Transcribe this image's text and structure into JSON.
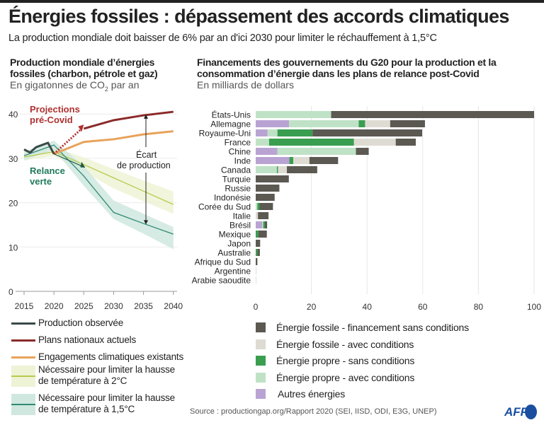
{
  "header": {
    "title": "Énergies fossiles : dépassement des accords climatiques",
    "subtitle": "La production mondiale doit baisser de 6% par an d'ici 2030 pour limiter le réchauffement à 1,5°C"
  },
  "colors": {
    "observed": "#3a4a48",
    "plans": "#8b2a2a",
    "engagements": "#e8a25a",
    "two_deg_line": "#b8c94a",
    "two_deg_band": "#eef3d6",
    "one5_line": "#2f8a72",
    "one5_band": "#cfe7df",
    "fossil_uncond": "#5c5952",
    "fossil_cond": "#dedbd2",
    "clean_uncond": "#3a9e50",
    "clean_cond": "#bfe2c6",
    "other": "#b9a3d3"
  },
  "chart_data": [
    {
      "type": "line",
      "title": "Production mondiale d’énergies fossiles (charbon, pétrole et gaz)",
      "subtitle": "En gigatonnes de CO",
      "subtitle_sub": "2",
      "subtitle_end": " par an",
      "xlim": [
        2015,
        2040
      ],
      "ylim": [
        0,
        40
      ],
      "xticks": [
        2015,
        2020,
        2025,
        2030,
        2035,
        2040
      ],
      "yticks": [
        0,
        10,
        20,
        30,
        40
      ],
      "grid": true,
      "series": [
        {
          "name": "Production observée",
          "x": [
            2015,
            2016,
            2017,
            2018,
            2019,
            2020
          ],
          "y": [
            32,
            31.3,
            32.5,
            33,
            33.5,
            31
          ]
        },
        {
          "name": "Plans nationaux actuels",
          "x": [
            2025,
            2030,
            2035,
            2040
          ],
          "y": [
            36.7,
            38.6,
            39.7,
            40.5
          ]
        },
        {
          "name": "Engagements climatiques existants",
          "x": [
            2020,
            2025,
            2030,
            2035,
            2040
          ],
          "y": [
            31,
            33.7,
            34.3,
            35.4,
            36.1
          ]
        },
        {
          "name": "Nécessaire pour limiter la hausse de température à 2°C",
          "x": [
            2015,
            2020,
            2025,
            2030,
            2035,
            2040
          ],
          "y": [
            30.3,
            31.5,
            28.6,
            25.6,
            22.6,
            19.6
          ],
          "upper": [
            31,
            32.5,
            30.2,
            27.6,
            25,
            22.5
          ],
          "lower": [
            29.5,
            30.5,
            27,
            23.2,
            20.3,
            17.5
          ]
        },
        {
          "name": "Nécessaire pour limiter la hausse de température à 1,5°C",
          "x": [
            2015,
            2020,
            2025,
            2030,
            2035,
            2040
          ],
          "y": [
            30.6,
            33,
            26,
            17.8,
            15.3,
            12.9
          ],
          "upper": [
            31.5,
            34,
            28.3,
            20.5,
            17.5,
            14.5
          ],
          "lower": [
            29.5,
            32,
            23.8,
            16.3,
            13,
            9.5
          ]
        }
      ],
      "annotations": {
        "projections": [
          "Projections",
          "pré-Covid"
        ],
        "relance": [
          "Relance",
          "verte"
        ],
        "ecart": [
          "Écart",
          "de production"
        ]
      }
    },
    {
      "type": "bar",
      "stacked": true,
      "orientation": "horizontal",
      "title": "Financements des gouvernements du G20 pour la production et la consommation d’énergie dans les plans de relance post-Covid",
      "subtitle": "En milliards de dollars",
      "xlim": [
        0,
        100
      ],
      "xticks": [
        0,
        20,
        40,
        60,
        80,
        100
      ],
      "grid": true,
      "categories": [
        "États-Unis",
        "Allemagne",
        "Royaume-Uni",
        "France",
        "Chine",
        "Inde",
        "Canada",
        "Turquie",
        "Russie",
        "Indonésie",
        "Corée du Sud",
        "Italie",
        "Brésil",
        "Mexique",
        "Japon",
        "Australie",
        "Afrique du Sud",
        "Argentine",
        "Arabie saoudite"
      ],
      "series": [
        {
          "name": "Autres énergies",
          "key": "other",
          "values": [
            0,
            12,
            4.2,
            0,
            7.8,
            12.1,
            0,
            0,
            0,
            0,
            0,
            0,
            2.3,
            0,
            0,
            0,
            0,
            0,
            0
          ]
        },
        {
          "name": "Énergie propre - avec conditions",
          "key": "clean_cond",
          "values": [
            27.1,
            25,
            3.6,
            4.8,
            28.2,
            0,
            7.6,
            0,
            0,
            0,
            0.6,
            0,
            0.4,
            0,
            0,
            0,
            0,
            0.2,
            0.2
          ]
        },
        {
          "name": "Énergie propre - sans conditions",
          "key": "clean_uncond",
          "values": [
            0,
            2.3,
            12.6,
            30.5,
            0,
            1.4,
            0.4,
            0,
            0,
            0,
            0.8,
            0,
            0.6,
            1,
            0,
            0.6,
            0,
            0,
            0
          ]
        },
        {
          "name": "Énergie fossile - avec conditions",
          "key": "fossil_cond",
          "values": [
            0,
            9,
            0,
            15,
            0,
            5.8,
            3.2,
            0,
            0,
            0,
            0,
            0.8,
            0,
            0,
            0,
            0,
            0,
            0,
            0
          ]
        },
        {
          "name": "Énergie fossile - financement sans conditions",
          "key": "fossil_uncond",
          "values": [
            72.9,
            12.5,
            39.4,
            7.2,
            4.6,
            10.3,
            10.9,
            11.9,
            8.5,
            6.8,
            4.8,
            3.8,
            0.8,
            3,
            1.6,
            0.9,
            0.6,
            0,
            0
          ]
        }
      ],
      "legend_order": [
        "fossil_uncond",
        "fossil_cond",
        "clean_uncond",
        "clean_cond",
        "other"
      ]
    }
  ],
  "legend_left": [
    {
      "label": "Production observée",
      "key": "observed"
    },
    {
      "label": "Plans nationaux actuels",
      "key": "plans"
    },
    {
      "label": "Engagements climatiques existants",
      "key": "engagements"
    },
    {
      "label": [
        "Nécessaire pour limiter la hausse",
        "de température à 2°C"
      ],
      "key": "two_deg"
    },
    {
      "label": [
        "Nécessaire pour limiter la hausse",
        "de température à 1,5°C"
      ],
      "key": "one5"
    }
  ],
  "legend_right": [
    "Énergie fossile - financement sans conditions",
    "Énergie fossile - avec conditions",
    "Énergie propre - sans conditions",
    "Énergie propre - avec conditions",
    "Autres énergies"
  ],
  "footer": {
    "source": "Source : productiongap.org/Rapport 2020 (SEI, IISD, ODI, E3G, UNEP)",
    "logo": "AFP"
  }
}
